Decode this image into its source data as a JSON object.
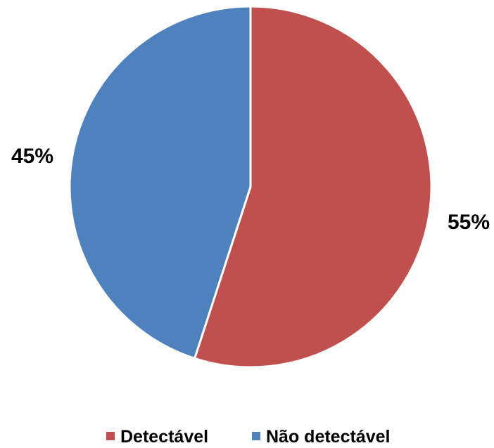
{
  "chart_data": {
    "type": "pie",
    "categories": [
      "Detectável",
      "Não detectável"
    ],
    "values": [
      55,
      45
    ],
    "data_labels": [
      "55%",
      "45%"
    ],
    "colors": [
      "#C0504D",
      "#4F81BD"
    ],
    "start_angle": "12 o'clock",
    "direction": "clockwise",
    "legend": {
      "placement": "bottom",
      "entries": [
        "Detectável",
        "Não detectável"
      ]
    }
  }
}
